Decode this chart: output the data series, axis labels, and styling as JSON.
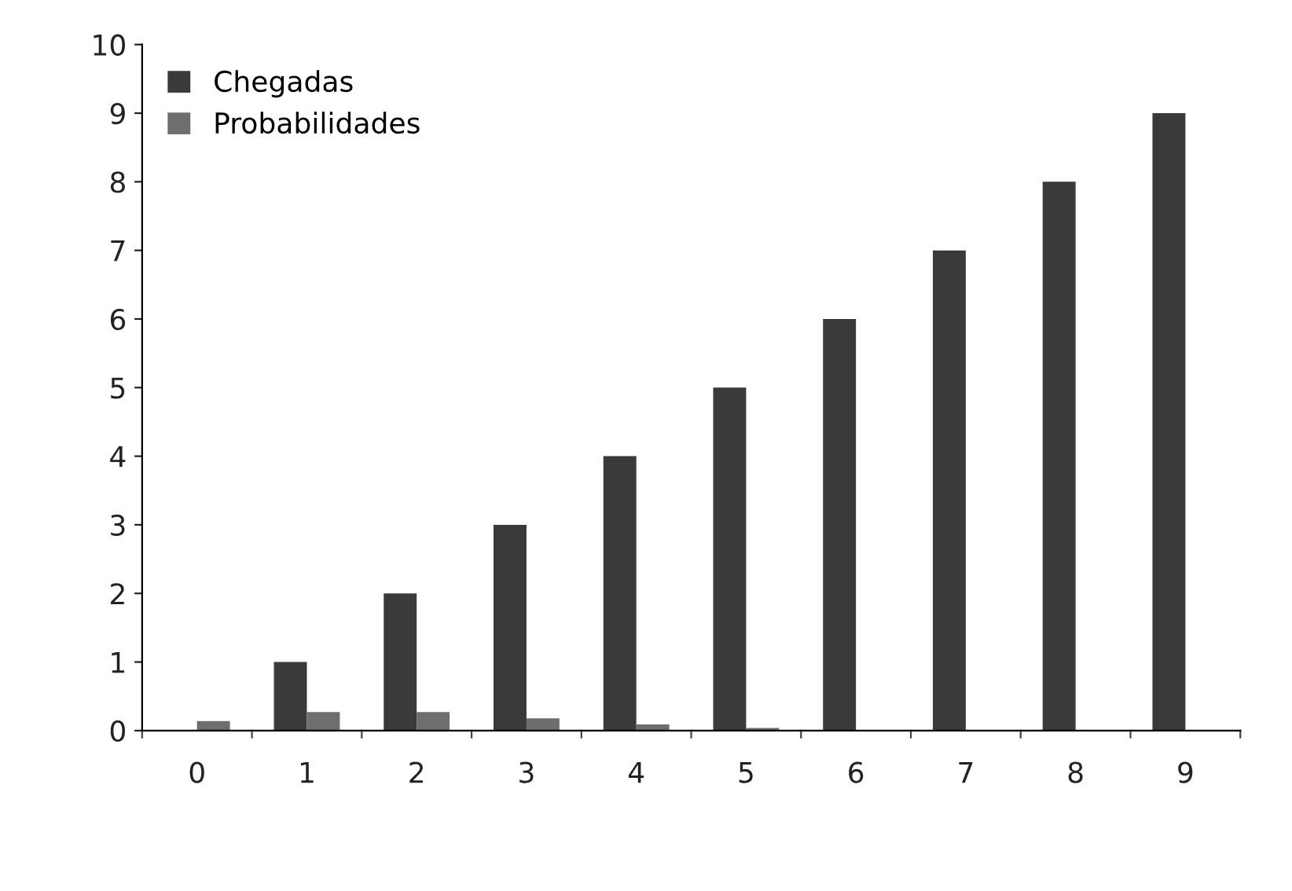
{
  "chart_data": {
    "type": "bar",
    "categories": [
      "0",
      "1",
      "2",
      "3",
      "4",
      "5",
      "6",
      "7",
      "8",
      "9"
    ],
    "series": [
      {
        "name": "Chegadas",
        "color": "#3a3a3a",
        "values": [
          0,
          1,
          2,
          3,
          4,
          5,
          6,
          7,
          8,
          9
        ]
      },
      {
        "name": "Probabilidades",
        "color": "#6e6e6e",
        "values": [
          0.14,
          0.27,
          0.27,
          0.18,
          0.09,
          0.04,
          0,
          0,
          0,
          0
        ]
      }
    ],
    "ylim": [
      0,
      10
    ],
    "yticks": [
      0,
      1,
      2,
      3,
      4,
      5,
      6,
      7,
      8,
      9,
      10
    ],
    "grid": false,
    "legend": "top left"
  }
}
